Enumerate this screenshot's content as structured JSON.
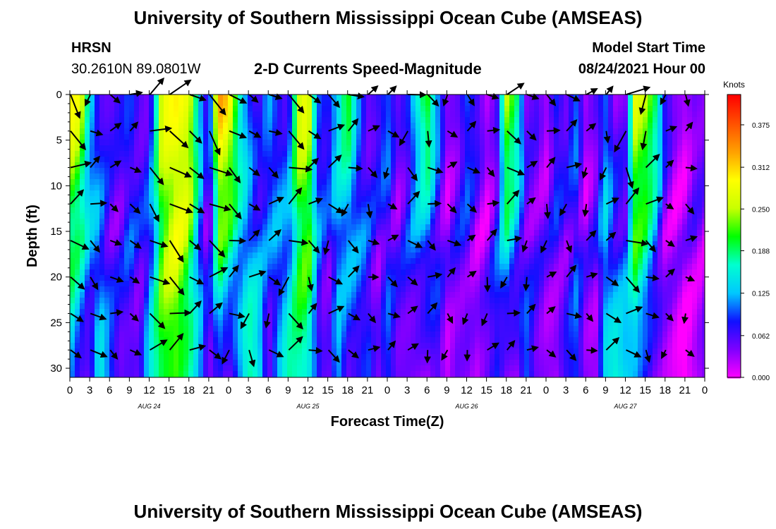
{
  "page": {
    "title_top": "University of Southern Mississippi Ocean Cube (AMSEAS)",
    "title_bottom": "University of Southern Mississippi Ocean Cube (AMSEAS)",
    "station": "HRSN",
    "location": "30.2610N  89.0801W",
    "chart_title": "2-D Currents Speed-Magnitude",
    "model_start_label": "Model Start Time",
    "model_start_value": "08/24/2021 Hour 00"
  },
  "chart_data": {
    "type": "heatmap",
    "title": "2-D Currents Speed-Magnitude",
    "xlabel": "Forecast Time(Z)",
    "ylabel": "Depth (ft)",
    "x_tick_labels": [
      "0",
      "3",
      "6",
      "9",
      "12",
      "15",
      "18",
      "21",
      "0",
      "3",
      "6",
      "9",
      "12",
      "15",
      "18",
      "21",
      "0",
      "3",
      "6",
      "9",
      "12",
      "15",
      "18",
      "21",
      "0",
      "3",
      "6",
      "9",
      "12",
      "15",
      "18",
      "21",
      "0"
    ],
    "date_labels": [
      {
        "text": "AUG 24",
        "hour": 12
      },
      {
        "text": "AUG 25",
        "hour": 36
      },
      {
        "text": "AUG 26",
        "hour": 60
      },
      {
        "text": "AUG 27",
        "hour": 84
      }
    ],
    "xlim": [
      0,
      96
    ],
    "y_ticks": [
      0,
      5,
      10,
      15,
      20,
      25,
      30
    ],
    "ylim": [
      0,
      31
    ],
    "y_inverted": true,
    "colorbar": {
      "label": "Knots",
      "ticks": [
        "0.000",
        "0.062",
        "0.125",
        "0.188",
        "0.250",
        "0.312",
        "0.375"
      ],
      "range": [
        0,
        0.42
      ],
      "colors": [
        "#ff00ff",
        "#8000ff",
        "#1010ff",
        "#00c8ff",
        "#00ffd0",
        "#00ff00",
        "#c8ff00",
        "#ffff00",
        "#ffa000",
        "#ff5000",
        "#ff0000"
      ]
    },
    "vector_depths_ft": [
      0,
      4,
      8,
      12,
      16,
      20,
      24,
      28
    ],
    "vector_interval_hours": 3,
    "speed_profile": {
      "hours": [
        0,
        1.5,
        3,
        4.5,
        6,
        7.5,
        9,
        10.5,
        12,
        14,
        16,
        18,
        20,
        21,
        22.5,
        24,
        25.5,
        27,
        28.5,
        30,
        31.5,
        33,
        34.5,
        36,
        37.5,
        39,
        40.5,
        42,
        43.5,
        45,
        46.5,
        48,
        49.5,
        51,
        52.5,
        54,
        55.5,
        57,
        58.5,
        60,
        61.5,
        63,
        64.5,
        66,
        67.5,
        69,
        70.5,
        72,
        73.5,
        75,
        76.5,
        78,
        79.5,
        81,
        82.5,
        84,
        85.5,
        87,
        88.5,
        90,
        91.5,
        93,
        94.5,
        96
      ],
      "surface_knots": [
        0.3,
        0.29,
        0.15,
        0.06,
        0.05,
        0.07,
        0.1,
        0.06,
        0.04,
        0.28,
        0.3,
        0.28,
        0.1,
        0.05,
        0.35,
        0.32,
        0.18,
        0.09,
        0.05,
        0.13,
        0.08,
        0.05,
        0.26,
        0.29,
        0.1,
        0.08,
        0.14,
        0.22,
        0.12,
        0.05,
        0.07,
        0.1,
        0.05,
        0.08,
        0.16,
        0.22,
        0.12,
        0.04,
        0.05,
        0.1,
        0.07,
        0.02,
        0.05,
        0.26,
        0.2,
        0.04,
        0.06,
        0.03,
        0.09,
        0.05,
        0.1,
        0.03,
        0.06,
        0.1,
        0.03,
        0.04,
        0.28,
        0.26,
        0.2,
        0.08,
        0.04,
        0.03,
        0.05,
        0.04
      ],
      "bottom_knots": [
        0.12,
        0.06,
        0.05,
        0.16,
        0.1,
        0.05,
        0.06,
        0.05,
        0.15,
        0.2,
        0.22,
        0.18,
        0.1,
        0.04,
        0.08,
        0.04,
        0.1,
        0.18,
        0.16,
        0.04,
        0.12,
        0.18,
        0.17,
        0.16,
        0.08,
        0.04,
        0.12,
        0.05,
        0.07,
        0.1,
        0.04,
        0.09,
        0.05,
        0.05,
        0.04,
        0.03,
        0.06,
        0.02,
        0.05,
        0.04,
        0.02,
        0.05,
        0.09,
        0.04,
        0.03,
        0.1,
        0.05,
        0.04,
        0.03,
        0.07,
        0.09,
        0.04,
        0.03,
        0.14,
        0.16,
        0.14,
        0.12,
        0.08,
        0.04,
        0.02,
        0.01,
        0.0,
        0.02,
        0.04
      ]
    }
  }
}
